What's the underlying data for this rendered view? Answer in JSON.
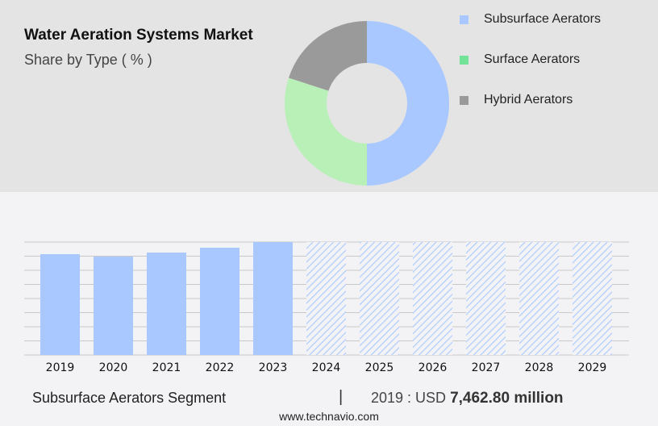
{
  "header": {
    "title": "Water Aeration Systems Market",
    "subtitle": "Share by Type ( % )"
  },
  "chart_data": [
    {
      "type": "pie",
      "variant": "donut",
      "slices": [
        {
          "label": "Subsurface Aerators",
          "value": 50,
          "color": "#a8c8ff",
          "legend_color": "#a8c8ff"
        },
        {
          "label": "Surface Aerators",
          "value": 30,
          "color": "#b8f0b8",
          "legend_color": "#74e39a"
        },
        {
          "label": "Hybrid Aerators",
          "value": 20,
          "color": "#9a9a9a",
          "legend_color": "#9a9a9a"
        }
      ],
      "legend_placement": "right"
    },
    {
      "type": "bar",
      "categories": [
        "2019",
        "2020",
        "2021",
        "2022",
        "2023",
        "2024",
        "2025",
        "2026",
        "2027",
        "2028",
        "2029"
      ],
      "values": [
        7462.8,
        7280,
        7580,
        7940,
        8360,
        null,
        null,
        null,
        null,
        null,
        null
      ],
      "forecast_categories": [
        "2024",
        "2025",
        "2026",
        "2027",
        "2028",
        "2029"
      ],
      "unit": "USD million",
      "grid": true,
      "colors": {
        "actual": "#a8c8ff",
        "forecast_hatch": "#a8c8ff"
      }
    }
  ],
  "footer": {
    "segment": "Subsurface Aerators Segment",
    "separator": "|",
    "year_label": "2019 : USD",
    "value": "7,462.80 million",
    "website": "www.technavio.com"
  }
}
